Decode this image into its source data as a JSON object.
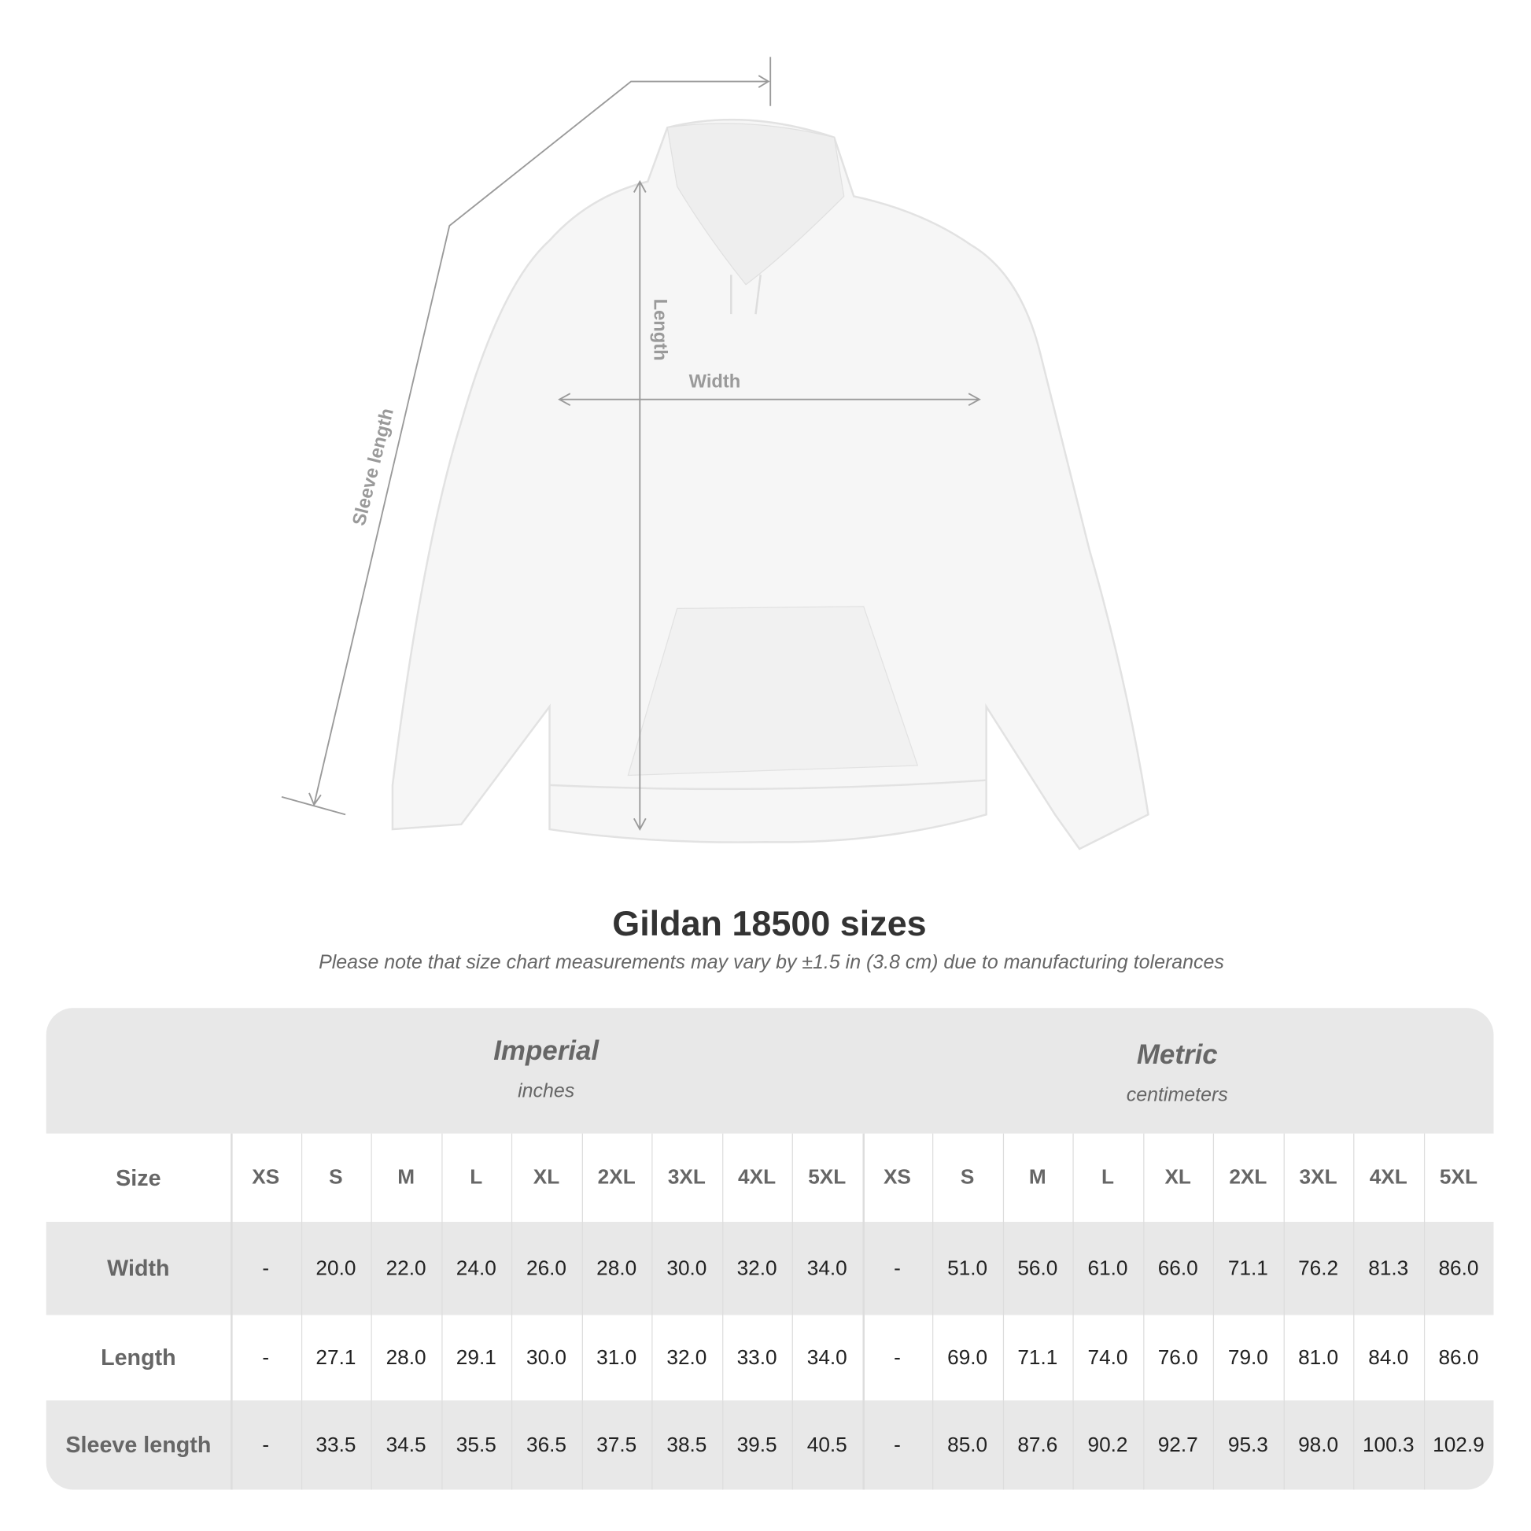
{
  "diagram_labels": {
    "sleeve": "Sleeve length",
    "length": "Length",
    "width": "Width"
  },
  "title": "Gildan 18500 sizes",
  "note": "Please note that size chart measurements may vary by ±1.5 in (3.8 cm) due to manufacturing tolerances",
  "table": {
    "imperial": {
      "name": "Imperial",
      "unit": "inches"
    },
    "metric": {
      "name": "Metric",
      "unit": "centimeters"
    },
    "size_label": "Size",
    "sizes": [
      "XS",
      "S",
      "M",
      "L",
      "XL",
      "2XL",
      "3XL",
      "4XL",
      "5XL"
    ],
    "rows": [
      {
        "label": "Width",
        "imperial": [
          "-",
          "20.0",
          "22.0",
          "24.0",
          "26.0",
          "28.0",
          "30.0",
          "32.0",
          "34.0"
        ],
        "metric": [
          "-",
          "51.0",
          "56.0",
          "61.0",
          "66.0",
          "71.1",
          "76.2",
          "81.3",
          "86.0"
        ]
      },
      {
        "label": "Length",
        "imperial": [
          "-",
          "27.1",
          "28.0",
          "29.1",
          "30.0",
          "31.0",
          "32.0",
          "33.0",
          "34.0"
        ],
        "metric": [
          "-",
          "69.0",
          "71.1",
          "74.0",
          "76.0",
          "79.0",
          "81.0",
          "84.0",
          "86.0"
        ]
      },
      {
        "label": "Sleeve length",
        "imperial": [
          "-",
          "33.5",
          "34.5",
          "35.5",
          "36.5",
          "37.5",
          "38.5",
          "39.5",
          "40.5"
        ],
        "metric": [
          "-",
          "85.0",
          "87.6",
          "90.2",
          "92.7",
          "95.3",
          "98.0",
          "100.3",
          "102.9"
        ]
      }
    ]
  },
  "colors": {
    "band": "#e8e8e8",
    "label": "#666666",
    "measure_line": "#9a9a9a"
  }
}
